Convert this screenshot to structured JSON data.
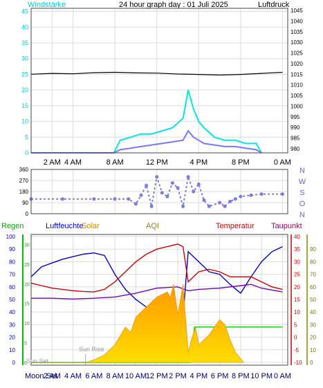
{
  "chart_data": [
    {
      "type": "line",
      "title": "24 hour graph day : 01 Juli 2025",
      "left_label": "Windstärke",
      "right_label": "Luftdruck",
      "left_ticks": [
        0,
        5,
        10,
        15,
        20,
        25,
        30,
        35,
        40,
        45
      ],
      "left_range": [
        0,
        46
      ],
      "right_ticks": [
        980,
        985,
        990,
        995,
        1000,
        1005,
        1010,
        1015,
        1020,
        1025,
        1030,
        1035,
        1040,
        1045
      ],
      "right_range": [
        978,
        1046
      ],
      "x_ticks": [
        "2 AM",
        "4 AM",
        "8 AM",
        "12 PM",
        "4 PM",
        "8 PM",
        "0 AM"
      ],
      "x_tick_hours": [
        2,
        4,
        8,
        12,
        16,
        20,
        24
      ],
      "x_range": [
        0,
        24.5
      ],
      "grid": true,
      "series": [
        {
          "name": "Luftdruck",
          "axis": "right",
          "color": "#000000",
          "x": [
            0,
            2,
            4,
            6,
            8,
            10,
            12,
            14,
            16,
            18,
            20,
            22,
            24
          ],
          "values": [
            1015.0,
            1015.4,
            1015.2,
            1015.7,
            1015.9,
            1015.6,
            1015.5,
            1015.1,
            1014.9,
            1014.6,
            1014.9,
            1015.4,
            1015.9
          ]
        },
        {
          "name": "Windböen",
          "axis": "left",
          "color": "#00e5e5",
          "x": [
            0,
            7.9,
            8.5,
            9.5,
            10.5,
            11.5,
            12.5,
            13.5,
            14.5,
            15.0,
            15.5,
            16.0,
            16.5,
            17.5,
            18.5,
            19.5,
            20.5,
            21.5,
            22.0
          ],
          "values": [
            0,
            0,
            4,
            5,
            6,
            6,
            7,
            8,
            11,
            20,
            14,
            10,
            8,
            5,
            4,
            4,
            3,
            3,
            0
          ]
        },
        {
          "name": "Windgeschwindigkeit",
          "axis": "left",
          "color": "#7777ff",
          "x": [
            0,
            7.9,
            8.5,
            9.5,
            10.5,
            11.5,
            12.5,
            13.5,
            14.5,
            15.0,
            15.5,
            16.0,
            16.5,
            17.5,
            18.5,
            19.5,
            20.5,
            21.5,
            22.0
          ],
          "values": [
            0,
            0,
            1,
            1.5,
            2,
            2.5,
            3,
            3.5,
            4,
            7,
            5,
            4,
            3,
            2.5,
            2,
            2,
            1.5,
            1,
            0
          ]
        }
      ]
    },
    {
      "type": "scatter",
      "title": "",
      "y_ticks": [
        0,
        90,
        180,
        270,
        360
      ],
      "y_range": [
        0,
        360
      ],
      "right_labels": [
        "N",
        "W",
        "S",
        "O",
        "N"
      ],
      "x_range": [
        0,
        24.5
      ],
      "grid": true,
      "series": [
        {
          "name": "Windrichtung",
          "color": "#7b7be0",
          "x": [
            0,
            3,
            6,
            8,
            9.3,
            10,
            10.5,
            11,
            11.5,
            12,
            12.5,
            13,
            13.5,
            14,
            14.5,
            15,
            15.5,
            16,
            16.5,
            17,
            18,
            18.5,
            19,
            19.5,
            20,
            21,
            22,
            24
          ],
          "values": [
            120,
            120,
            120,
            120,
            120,
            80,
            150,
            230,
            60,
            300,
            170,
            140,
            250,
            210,
            60,
            300,
            180,
            240,
            110,
            60,
            90,
            60,
            100,
            120,
            140,
            150,
            160,
            160
          ]
        }
      ]
    },
    {
      "type": "line",
      "labels": {
        "regen": "Regen",
        "luftfeuchte": "Luftfeuchte",
        "solar": "Solar",
        "aqi": "AQI",
        "temperatur": "Temperatur",
        "taupunkt": "Taupunkt"
      },
      "left_ticks": [
        0,
        10,
        20,
        30,
        40,
        50,
        60,
        70,
        80,
        90,
        100
      ],
      "left_range": [
        0,
        100
      ],
      "rain_ticks": [
        0,
        5,
        10,
        15,
        20,
        25,
        30
      ],
      "rain_range": [
        0,
        32
      ],
      "temp_ticks": [
        -10,
        -5,
        0,
        5,
        10,
        15,
        20,
        25,
        30,
        35,
        40
      ],
      "temp_range": [
        -10,
        40
      ],
      "aqi_ticks": [
        0,
        10,
        20,
        30,
        40,
        50,
        60,
        70,
        80,
        90
      ],
      "aqi_range": [
        0,
        100
      ],
      "x_ticks": [
        "2 AM",
        "4 AM",
        "6 AM",
        "8 AM",
        "10 AM",
        "12 PM",
        "2 PM",
        "4 PM",
        "6 PM",
        "8 PM",
        "10 PM",
        "0 AM"
      ],
      "x_tick_hours": [
        2,
        4,
        6,
        8,
        10,
        12,
        14,
        16,
        18,
        20,
        22,
        24
      ],
      "x_range": [
        0,
        24.5
      ],
      "annotations": {
        "sunrise": "Sun Rise",
        "sunset": "Sun Set",
        "moonset": "Moon Set"
      },
      "sunrise_hour": 5.2,
      "grid": true,
      "series": [
        {
          "name": "Luftfeuchte",
          "axis": "left",
          "color": "#0000cc",
          "x": [
            0,
            1,
            2,
            3,
            4,
            5,
            6,
            7,
            8,
            9,
            10,
            11,
            12,
            13,
            14,
            14.5,
            15,
            15.5,
            16,
            17,
            18,
            19,
            20,
            21,
            22,
            23,
            24
          ],
          "values": [
            68,
            76,
            79,
            82,
            84,
            86,
            87,
            85,
            70,
            58,
            50,
            44,
            40,
            37,
            34,
            36,
            88,
            84,
            80,
            72,
            70,
            62,
            55,
            68,
            80,
            88,
            92
          ]
        },
        {
          "name": "Temperatur",
          "axis": "temp",
          "color": "#cc0000",
          "x": [
            0,
            1,
            2,
            3,
            4,
            5,
            6,
            7,
            8,
            9,
            10,
            11,
            12,
            13,
            14,
            14.5,
            15,
            15.5,
            16,
            17,
            18,
            19,
            20,
            21,
            22,
            23,
            24
          ],
          "values": [
            21.5,
            20.5,
            19.5,
            19,
            18.5,
            18.2,
            18.0,
            19,
            22,
            26,
            30,
            33,
            35,
            36,
            37,
            36,
            22,
            24,
            26,
            27,
            26,
            24,
            24,
            24,
            22,
            20,
            19
          ]
        },
        {
          "name": "Taupunkt",
          "axis": "temp",
          "color": "#7700bb",
          "x": [
            0,
            2,
            4,
            6,
            8,
            10,
            12,
            14,
            15,
            16,
            18,
            20,
            21,
            22,
            24
          ],
          "values": [
            15.5,
            15.5,
            15.2,
            15.5,
            16,
            17.5,
            19.5,
            20,
            18.5,
            19,
            19.5,
            20.5,
            21,
            19.5,
            18
          ]
        },
        {
          "name": "Regen",
          "axis": "rain",
          "color": "#00cc00",
          "x": [
            0,
            15.2,
            15.6,
            24
          ],
          "values": [
            0,
            0,
            9,
            9
          ]
        },
        {
          "name": "Solar",
          "axis": "left",
          "color": "#ffaa00",
          "x": [
            0,
            5.2,
            6,
            7,
            7.5,
            8,
            9,
            9.5,
            10,
            11,
            11.5,
            12,
            13,
            13.3,
            13.6,
            14,
            14.5,
            15,
            15.3,
            15.7,
            16,
            17,
            18,
            18.5,
            19,
            19.5,
            20,
            20.3
          ],
          "values": [
            0,
            0,
            2,
            6,
            10,
            14,
            28,
            24,
            36,
            44,
            48,
            52,
            56,
            52,
            62,
            38,
            62,
            8,
            18,
            28,
            14,
            22,
            34,
            30,
            18,
            8,
            3,
            0
          ]
        }
      ]
    }
  ]
}
